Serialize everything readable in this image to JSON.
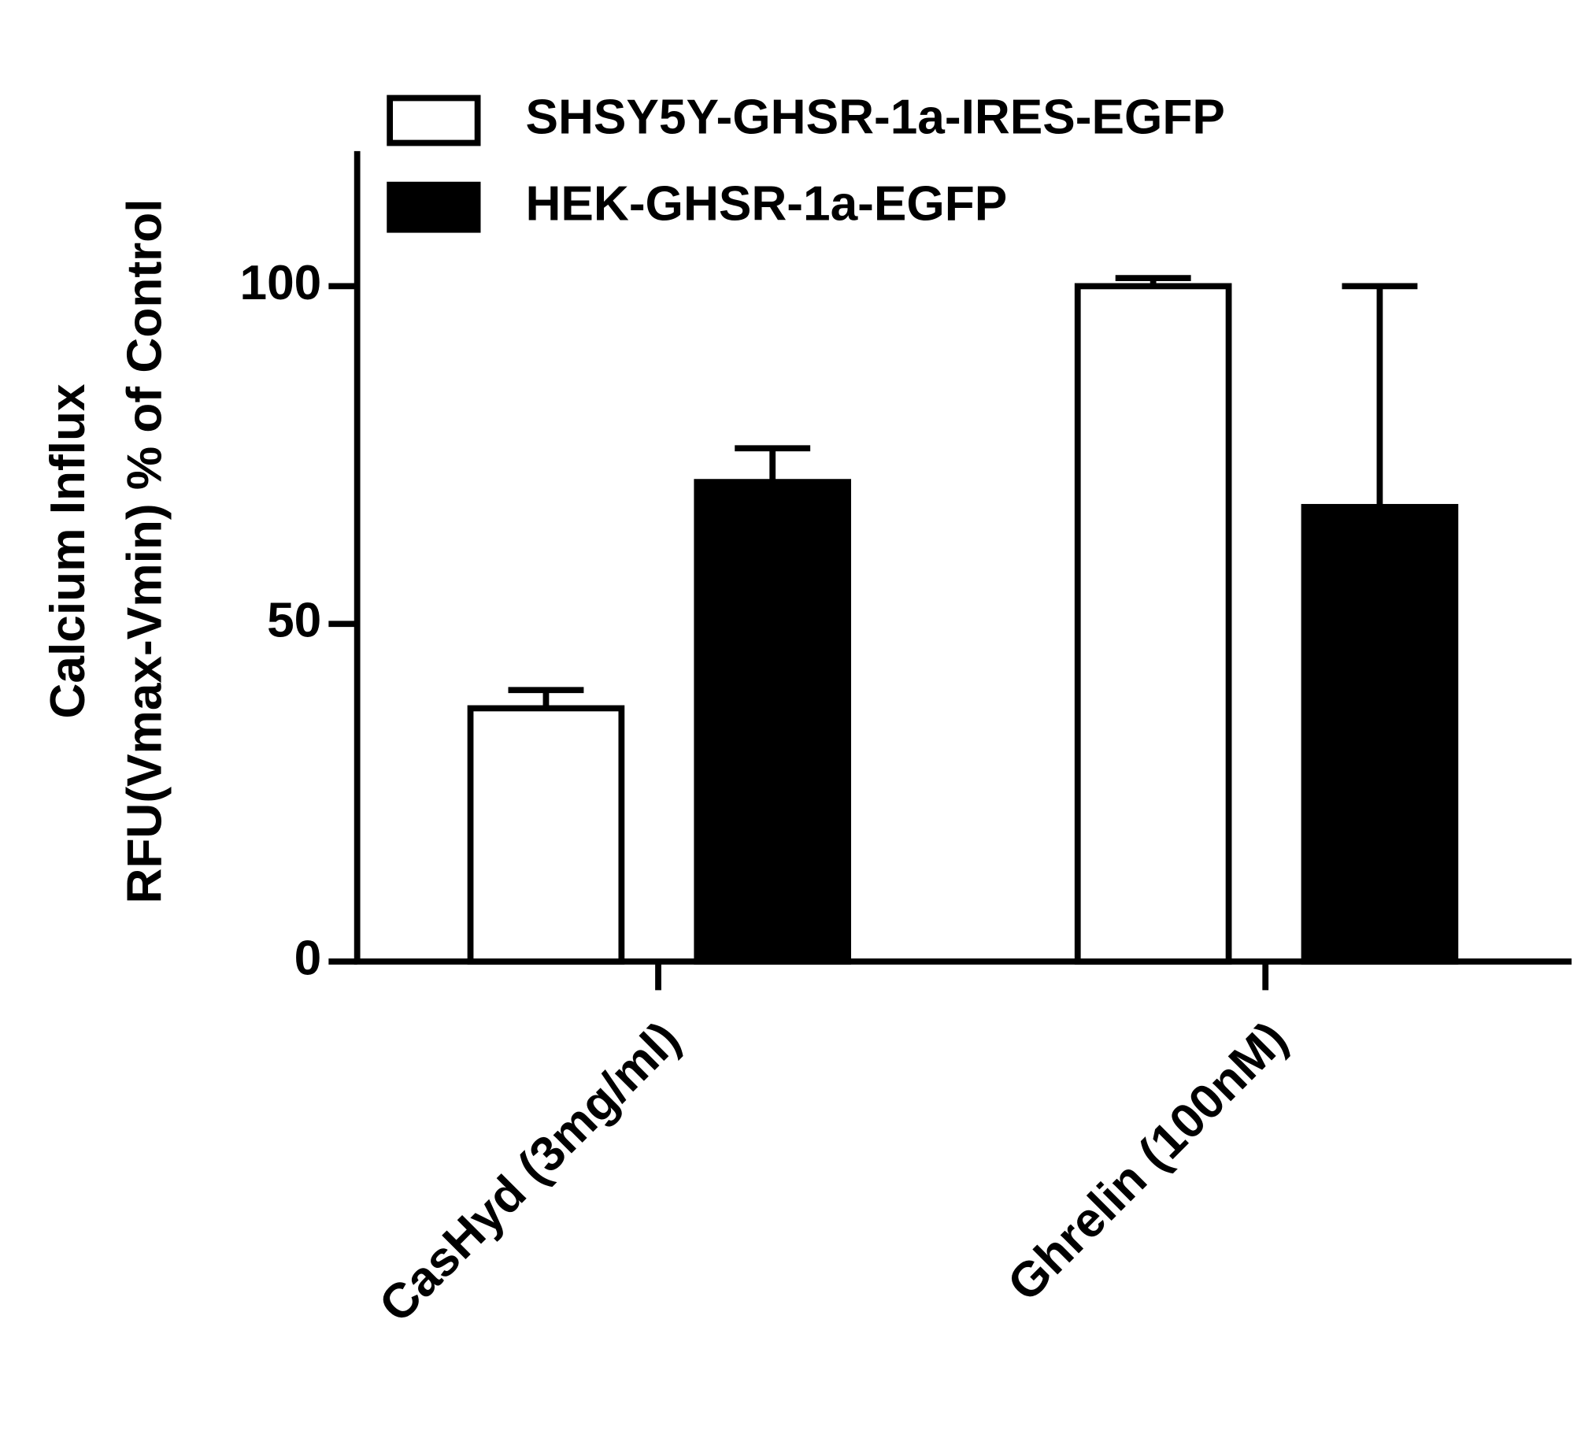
{
  "chart_data": {
    "type": "bar",
    "ylabel": [
      "Calcium Influx",
      "RFU(Vmax-Vmin) % of Control"
    ],
    "categories": [
      "CasHyd (3mg/ml)",
      "Ghrelin (100nM)"
    ],
    "series": [
      {
        "name": "SHSY5Y-GHSR-1a-IRES-EGFP",
        "color": "#ffffff",
        "values": [
          37.5,
          100
        ],
        "errors": [
          2.7,
          1.2
        ]
      },
      {
        "name": "HEK-GHSR-1a-EGFP",
        "color": "#000000",
        "values": [
          71,
          67.3
        ],
        "errors": [
          5,
          32.7
        ]
      }
    ],
    "ylim": [
      0,
      120
    ],
    "yticks": [
      0,
      50,
      100
    ],
    "grid": false,
    "legend": "top"
  }
}
